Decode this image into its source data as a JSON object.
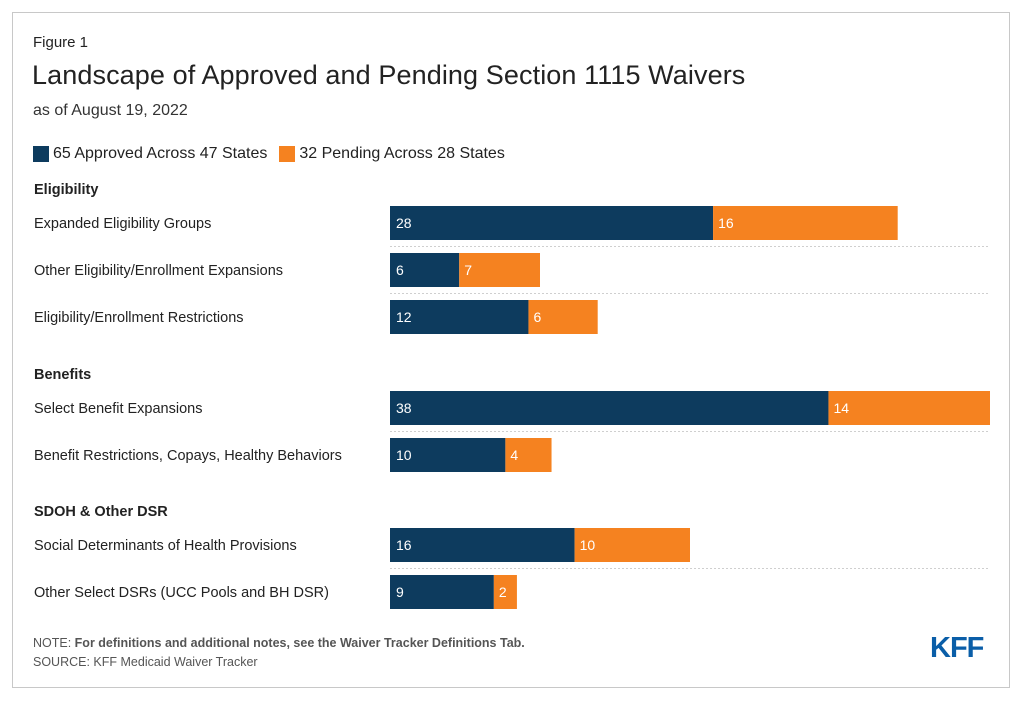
{
  "header": {
    "figure_label": "Figure 1",
    "title": "Landscape of Approved and Pending Section 1115 Waivers",
    "subtitle": "as of August 19, 2022"
  },
  "colors": {
    "approved": "#0d3b5e",
    "pending": "#f58220",
    "divider": "#cfcfcf"
  },
  "chart_data": {
    "type": "bar",
    "orientation": "horizontal",
    "stacked": true,
    "series": [
      {
        "name": "65 Approved Across 47 States",
        "values": [
          28,
          6,
          12,
          38,
          10,
          16,
          9
        ]
      },
      {
        "name": "32 Pending Across 28 States",
        "values": [
          16,
          7,
          6,
          14,
          4,
          10,
          2
        ]
      }
    ],
    "groups": [
      {
        "label": "Eligibility",
        "categories": [
          "Expanded Eligibility Groups",
          "Other Eligibility/Enrollment Expansions",
          "Eligibility/Enrollment Restrictions"
        ]
      },
      {
        "label": "Benefits",
        "categories": [
          "Select Benefit Expansions",
          "Benefit Restrictions, Copays, Healthy Behaviors"
        ]
      },
      {
        "label": "SDOH & Other DSR",
        "categories": [
          "Social Determinants of Health Provisions",
          "Other Select DSRs (UCC Pools and BH DSR)"
        ]
      }
    ],
    "categories": [
      "Expanded Eligibility Groups",
      "Other Eligibility/Enrollment Expansions",
      "Eligibility/Enrollment Restrictions",
      "Select Benefit Expansions",
      "Benefit Restrictions, Copays, Healthy Behaviors",
      "Social Determinants of Health Provisions",
      "Other Select DSRs (UCC Pools and BH DSR)"
    ],
    "xlim": [
      0,
      52
    ],
    "legend": "top-left",
    "grid": false
  },
  "footer": {
    "note_prefix": "NOTE: ",
    "note_bold": "For definitions and additional notes, see the Waiver Tracker Definitions Tab.",
    "source": "SOURCE: KFF Medicaid Waiver Tracker",
    "logo": "KFF"
  }
}
